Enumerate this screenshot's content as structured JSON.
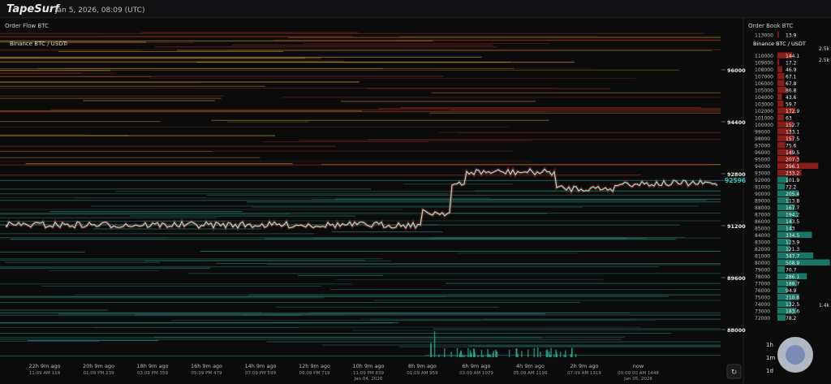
{
  "header": {
    "logo": "TapeSurf",
    "datetime": "Jan 5, 2026, 08:09 (UTC)"
  },
  "order_flow": {
    "title": "Order Flow BTC",
    "exchange": "Binance BTC / USDT",
    "price_labels": [
      96000,
      94400,
      92800,
      91200,
      89600,
      88000
    ],
    "current_price": 92596,
    "time_labels": [
      {
        "ago": "22h 9m ago",
        "time": "11:09 AM 119"
      },
      {
        "ago": "20h 9m ago",
        "time": "01:09 PM 239"
      },
      {
        "ago": "18h 9m ago",
        "time": "03:09 PM 359"
      },
      {
        "ago": "16h 9m ago",
        "time": "05:09 PM 479"
      },
      {
        "ago": "14h 9m ago",
        "time": "07:09 PM 599"
      },
      {
        "ago": "12h 9m ago",
        "time": "09:09 PM 719"
      },
      {
        "ago": "10h 9m ago",
        "time": "11:09 PM 839",
        "date": "Jan 04, 2026"
      },
      {
        "ago": "8h 9m ago",
        "time": "01:09 AM 959"
      },
      {
        "ago": "6h 9m ago",
        "time": "03:09 AM 1079"
      },
      {
        "ago": "4h 9m ago",
        "time": "05:09 AM 1199"
      },
      {
        "ago": "2h 9m ago",
        "time": "07:09 AM 1319"
      },
      {
        "ago": "now",
        "time": "09:09:00 AM 1448",
        "date": "Jan 05, 2026"
      }
    ]
  },
  "order_book": {
    "title": "Order Book BTC",
    "exchange": "Binance BTC / USDT",
    "rows": [
      {
        "price": 113000,
        "amount": 13.9
      },
      {
        "price": 110000,
        "amount": 144.1
      },
      {
        "price": 109000,
        "amount": 17.2
      },
      {
        "price": 108000,
        "amount": 46.9
      },
      {
        "price": 107000,
        "amount": 67.1
      },
      {
        "price": 106000,
        "amount": 67.8
      },
      {
        "price": 105000,
        "amount": 86.8
      },
      {
        "price": 104000,
        "amount": 43.6
      },
      {
        "price": 103000,
        "amount": 59.7
      },
      {
        "price": 102000,
        "amount": 172.9
      },
      {
        "price": 101000,
        "amount": 63.0
      },
      {
        "price": 100000,
        "amount": 152.7
      },
      {
        "price": 99000,
        "amount": 133.1
      },
      {
        "price": 98000,
        "amount": 157.5
      },
      {
        "price": 97000,
        "amount": 75.6
      },
      {
        "price": 96000,
        "amount": 149.5
      },
      {
        "price": 95000,
        "amount": 207.3
      },
      {
        "price": 94000,
        "amount": 396.1
      },
      {
        "price": 93000,
        "amount": 233.2
      },
      {
        "price": 92000,
        "amount": 101.9
      },
      {
        "price": 91000,
        "amount": 72.2
      },
      {
        "price": 90000,
        "amount": 205.4
      },
      {
        "price": 89000,
        "amount": 113.8
      },
      {
        "price": 88000,
        "amount": 167.7
      },
      {
        "price": 87000,
        "amount": 194.2
      },
      {
        "price": 86000,
        "amount": 143.5
      },
      {
        "price": 85000,
        "amount": 143.0
      },
      {
        "price": 84000,
        "amount": 334.5
      },
      {
        "price": 83000,
        "amount": 123.9
      },
      {
        "price": 82000,
        "amount": 121.3
      },
      {
        "price": 81000,
        "amount": 347.7
      },
      {
        "price": 80000,
        "amount": 508.9
      },
      {
        "price": 79000,
        "amount": 70.7
      },
      {
        "price": 78000,
        "amount": 286.1
      },
      {
        "price": 77000,
        "amount": 188.7
      },
      {
        "price": 76000,
        "amount": 94.9
      },
      {
        "price": 75000,
        "amount": 210.6
      },
      {
        "price": 74000,
        "amount": 132.5
      },
      {
        "price": 73000,
        "amount": 183.6
      },
      {
        "price": 72000,
        "amount": 78.2
      }
    ],
    "side_labels": [
      "2.5k",
      "2.5k",
      "1.4k"
    ]
  },
  "timeframes": [
    "1h",
    "1m",
    "1d"
  ]
}
